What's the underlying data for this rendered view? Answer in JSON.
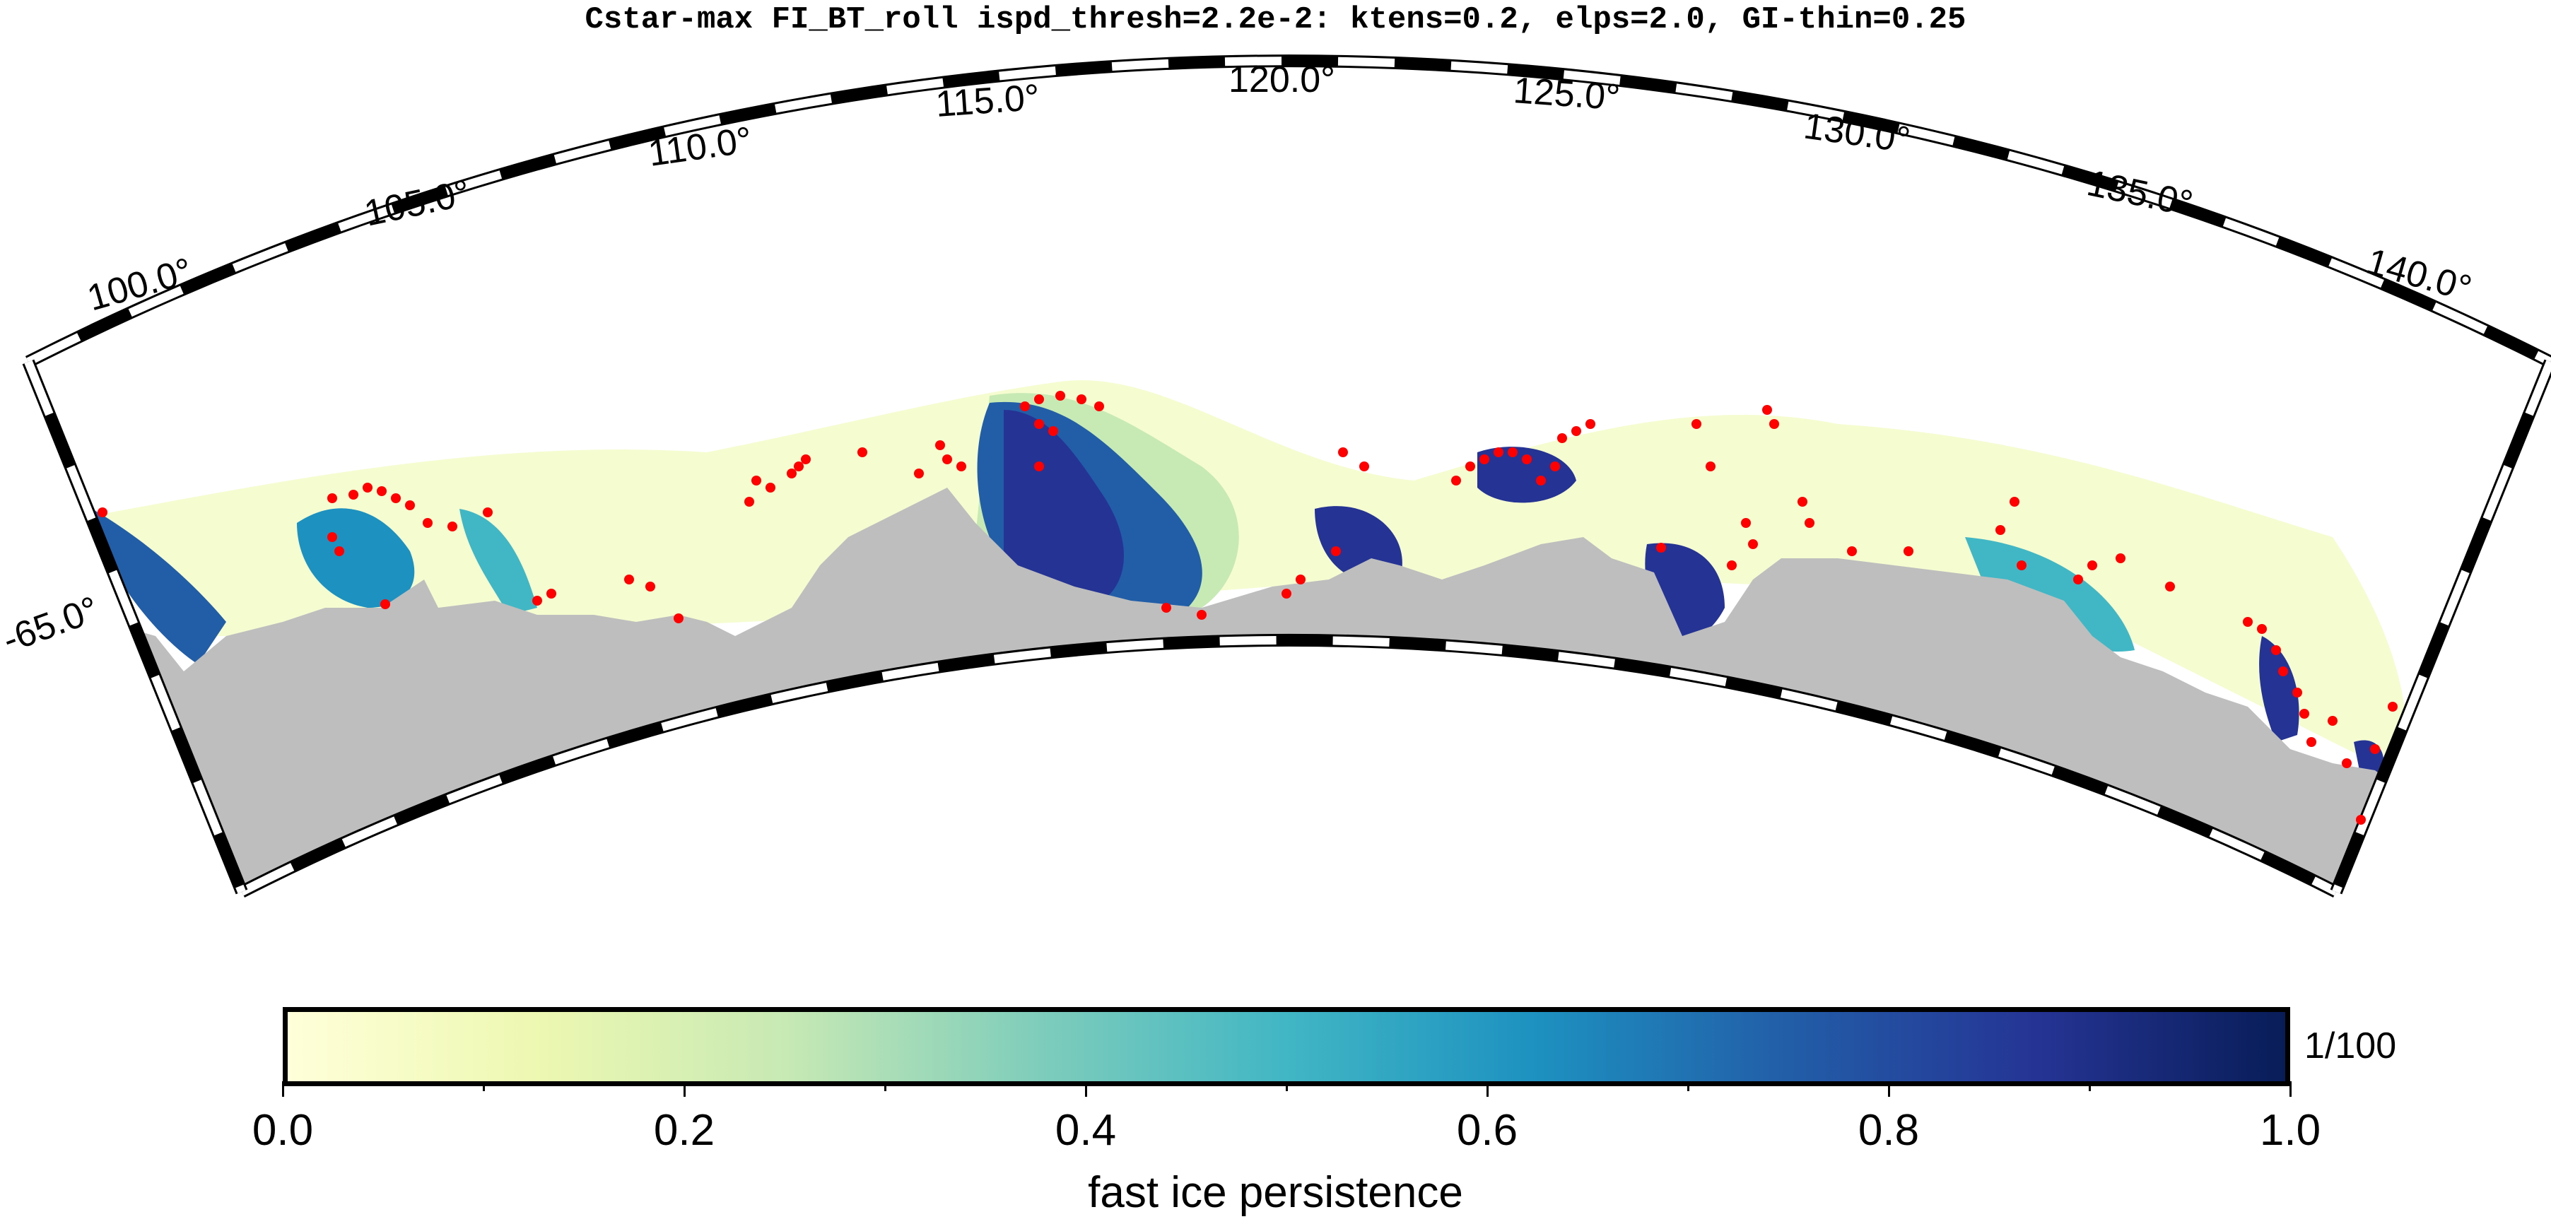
{
  "title": "Cstar-max FI_BT_roll ispd_thresh=2.2e-2: ktens=0.2, elps=2.0, GI-thin=0.25",
  "map": {
    "lon_labels": [
      "100.0°",
      "105.0°",
      "110.0°",
      "115.0°",
      "120.0°",
      "125.0°",
      "130.0°",
      "135.0°",
      "140.0°"
    ],
    "lat_labels": [
      "-65.0°"
    ],
    "land_color": "#bebebe",
    "grounded_iceberg_marker_color": "#ff0000"
  },
  "colorbar": {
    "label": "fast ice persistence",
    "unit": "1/100",
    "tick_labels": [
      "0.0",
      "0.2",
      "0.4",
      "0.6",
      "0.8",
      "1.0"
    ],
    "range": [
      0.0,
      1.0
    ],
    "colormap": [
      "#ffffd9",
      "#edf8b1",
      "#c7e9b4",
      "#7fcdbb",
      "#41b6c4",
      "#1d91c0",
      "#225ea8",
      "#253494",
      "#081d58"
    ]
  }
}
